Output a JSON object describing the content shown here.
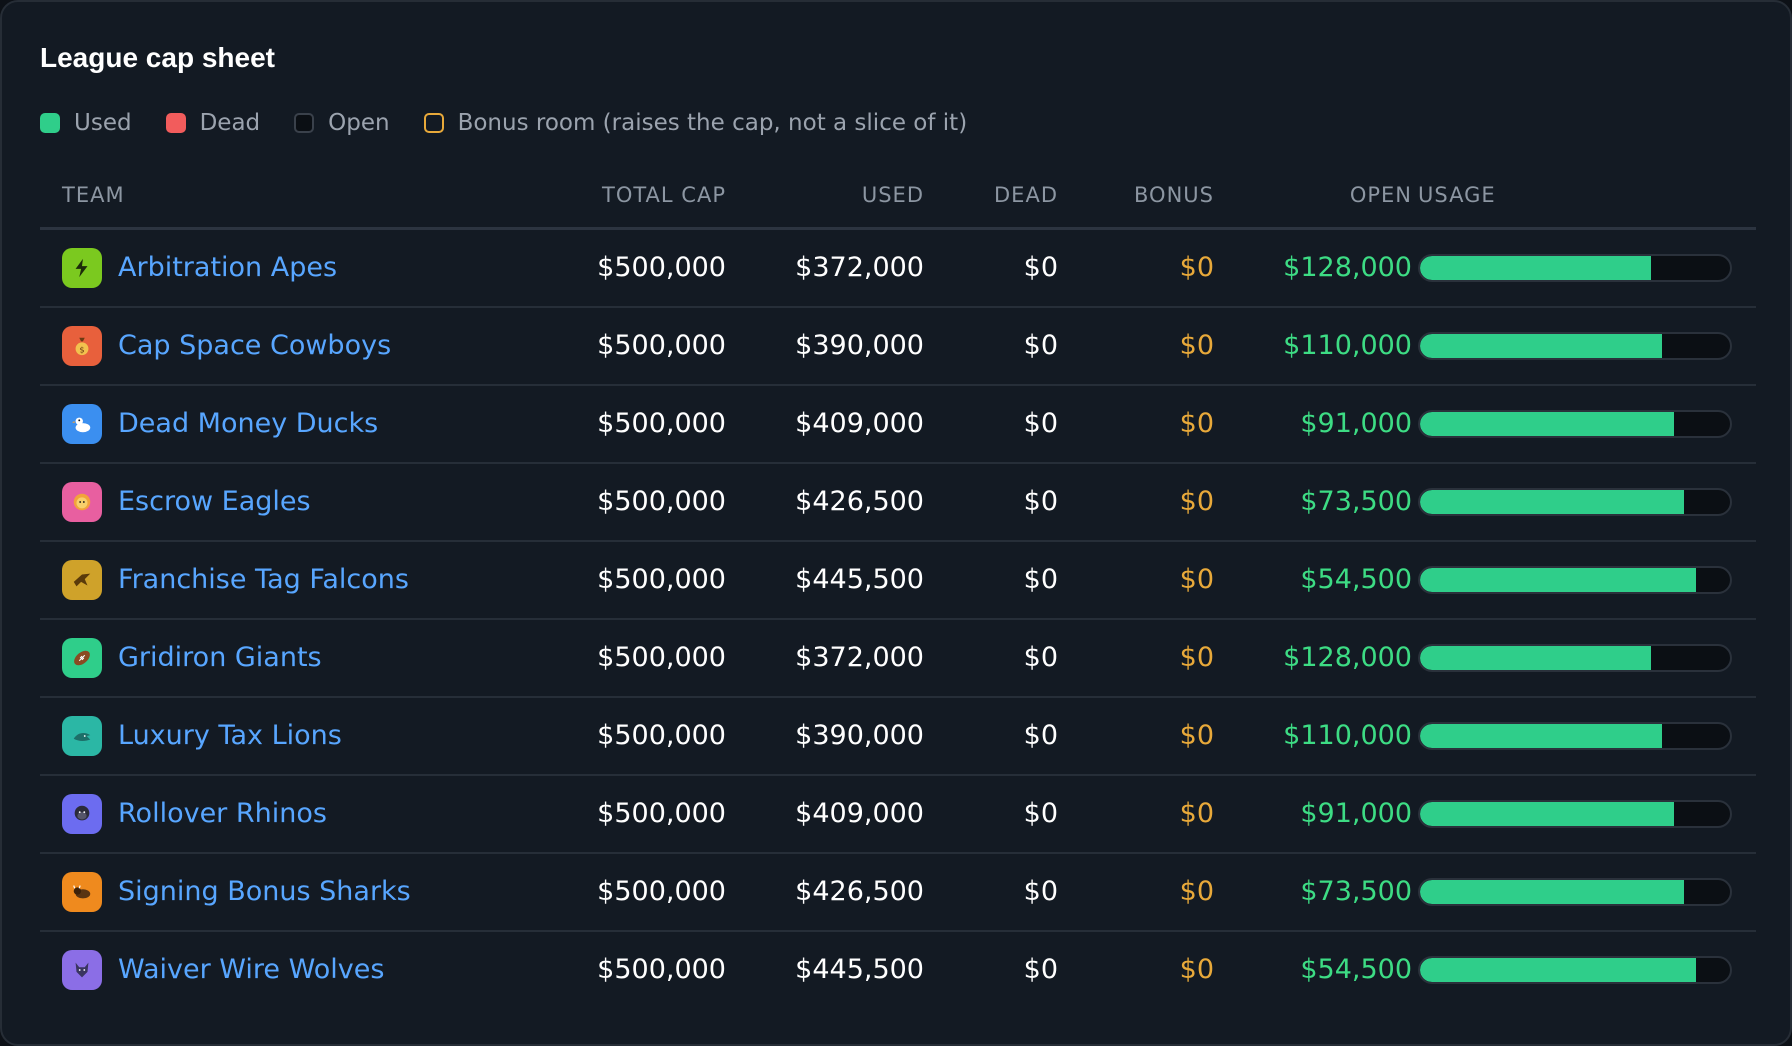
{
  "title": "League cap sheet",
  "legend": [
    {
      "label": "Used",
      "color": "#2fce8a",
      "key": "used"
    },
    {
      "label": "Dead",
      "color": "#f25c5c",
      "key": "dead"
    },
    {
      "label": "Open",
      "color": "#0b0f14",
      "key": "open"
    },
    {
      "label": "Bonus room (raises the cap, not a slice of it)",
      "color": "#e8a93a",
      "key": "bonus"
    }
  ],
  "columns": {
    "team": "TEAM",
    "total": "TOTAL CAP",
    "used": "USED",
    "dead": "DEAD",
    "bonus": "BONUS",
    "open": "OPEN",
    "usage": "USAGE"
  },
  "rows": [
    {
      "team": "Arbitration Apes",
      "icon": "lightning-icon",
      "icon_color": "#7bc91f",
      "total": "$500,000",
      "used": "$372,000",
      "dead": "$0",
      "bonus": "$0",
      "open": "$128,000",
      "usage": 0.744
    },
    {
      "team": "Cap Space Cowboys",
      "icon": "money-bag-icon",
      "icon_color": "#e8603c",
      "total": "$500,000",
      "used": "$390,000",
      "dead": "$0",
      "bonus": "$0",
      "open": "$110,000",
      "usage": 0.78
    },
    {
      "team": "Dead Money Ducks",
      "icon": "duck-icon",
      "icon_color": "#3b8ff0",
      "total": "$500,000",
      "used": "$409,000",
      "dead": "$0",
      "bonus": "$0",
      "open": "$91,000",
      "usage": 0.818
    },
    {
      "team": "Escrow Eagles",
      "icon": "lion-icon",
      "icon_color": "#e85fa0",
      "total": "$500,000",
      "used": "$426,500",
      "dead": "$0",
      "bonus": "$0",
      "open": "$73,500",
      "usage": 0.853
    },
    {
      "team": "Franchise Tag Falcons",
      "icon": "falcon-icon",
      "icon_color": "#cfa22a",
      "total": "$500,000",
      "used": "$445,500",
      "dead": "$0",
      "bonus": "$0",
      "open": "$54,500",
      "usage": 0.891
    },
    {
      "team": "Gridiron Giants",
      "icon": "football-icon",
      "icon_color": "#2fce8a",
      "total": "$500,000",
      "used": "$372,000",
      "dead": "$0",
      "bonus": "$0",
      "open": "$128,000",
      "usage": 0.744
    },
    {
      "team": "Luxury Tax Lions",
      "icon": "shark-icon",
      "icon_color": "#2bb7a5",
      "total": "$500,000",
      "used": "$390,000",
      "dead": "$0",
      "bonus": "$0",
      "open": "$110,000",
      "usage": 0.78
    },
    {
      "team": "Rollover Rhinos",
      "icon": "gorilla-icon",
      "icon_color": "#6c6cf0",
      "total": "$500,000",
      "used": "$409,000",
      "dead": "$0",
      "bonus": "$0",
      "open": "$91,000",
      "usage": 0.818
    },
    {
      "team": "Signing Bonus Sharks",
      "icon": "bison-icon",
      "icon_color": "#ef8a1e",
      "total": "$500,000",
      "used": "$426,500",
      "dead": "$0",
      "bonus": "$0",
      "open": "$73,500",
      "usage": 0.853
    },
    {
      "team": "Waiver Wire Wolves",
      "icon": "wolf-icon",
      "icon_color": "#8b6ee6",
      "total": "$500,000",
      "used": "$445,500",
      "dead": "$0",
      "bonus": "$0",
      "open": "$54,500",
      "usage": 0.891
    }
  ]
}
